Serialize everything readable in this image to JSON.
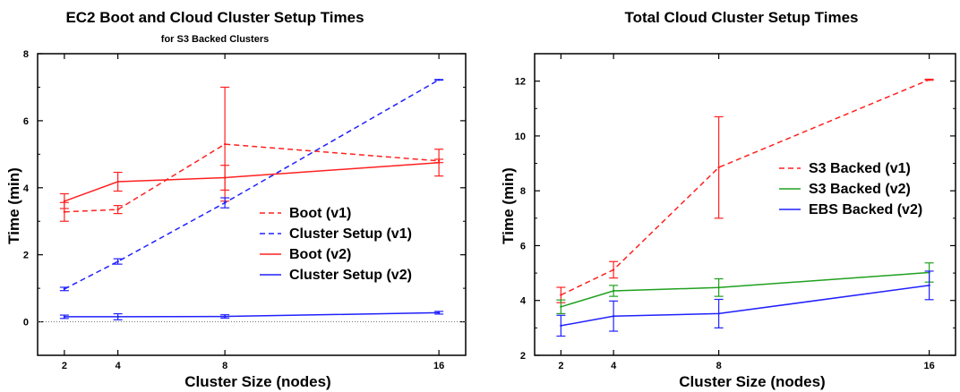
{
  "chart_data": [
    {
      "type": "line",
      "title": "EC2 Boot and Cloud Cluster Setup Times",
      "subtitle": "for S3 Backed Clusters",
      "xlabel": "Cluster Size (nodes)",
      "ylabel": "Time (min)",
      "x": [
        2,
        4,
        8,
        16
      ],
      "xticks": [
        "2",
        "4",
        "8",
        "16"
      ],
      "yticks": [
        "0",
        "2",
        "4",
        "6",
        "8"
      ],
      "xlim": [
        1,
        17
      ],
      "ylim": [
        -1,
        8
      ],
      "grid": false,
      "zero_line": true,
      "legend_position": "right-center",
      "series": [
        {
          "name": "Boot (v1)",
          "color": "#ff2020",
          "dash": true,
          "values": [
            3.28,
            3.35,
            5.3,
            4.8
          ],
          "err": [
            0.28,
            0.12,
            1.7,
            0.05
          ]
        },
        {
          "name": "Cluster Setup (v1)",
          "color": "#2020ff",
          "dash": true,
          "values": [
            0.98,
            1.8,
            3.55,
            7.22
          ],
          "err": [
            0.05,
            0.08,
            0.15,
            0.01
          ]
        },
        {
          "name": "Boot (v2)",
          "color": "#ff2020",
          "dash": false,
          "values": [
            3.6,
            4.18,
            4.3,
            4.75
          ],
          "err": [
            0.22,
            0.28,
            0.37,
            0.4
          ]
        },
        {
          "name": "Cluster Setup (v2)",
          "color": "#2020ff",
          "dash": false,
          "values": [
            0.15,
            0.15,
            0.16,
            0.27
          ],
          "err": [
            0.05,
            0.09,
            0.05,
            0.04
          ]
        }
      ]
    },
    {
      "type": "line",
      "title": "Total Cloud Cluster Setup Times",
      "xlabel": "Cluster Size (nodes)",
      "ylabel": "Time (min)",
      "x": [
        2,
        4,
        8,
        16
      ],
      "xticks": [
        "2",
        "4",
        "8",
        "16"
      ],
      "yticks": [
        "2",
        "4",
        "6",
        "8",
        "10",
        "12"
      ],
      "xlim": [
        1,
        17
      ],
      "ylim": [
        2,
        13
      ],
      "grid": false,
      "legend_position": "right-center",
      "series": [
        {
          "name": "S3 Backed (v1)",
          "color": "#ff2020",
          "dash": true,
          "values": [
            4.2,
            5.12,
            8.85,
            12.05
          ],
          "err": [
            0.28,
            0.3,
            1.85,
            0.02
          ]
        },
        {
          "name": "S3 Backed (v2)",
          "color": "#20a020",
          "dash": false,
          "values": [
            3.77,
            4.35,
            4.47,
            5.02
          ],
          "err": [
            0.25,
            0.2,
            0.32,
            0.35
          ]
        },
        {
          "name": "EBS Backed (v2)",
          "color": "#2020ff",
          "dash": false,
          "values": [
            3.08,
            3.43,
            3.52,
            4.55
          ],
          "err": [
            0.38,
            0.55,
            0.52,
            0.52
          ]
        }
      ]
    }
  ]
}
